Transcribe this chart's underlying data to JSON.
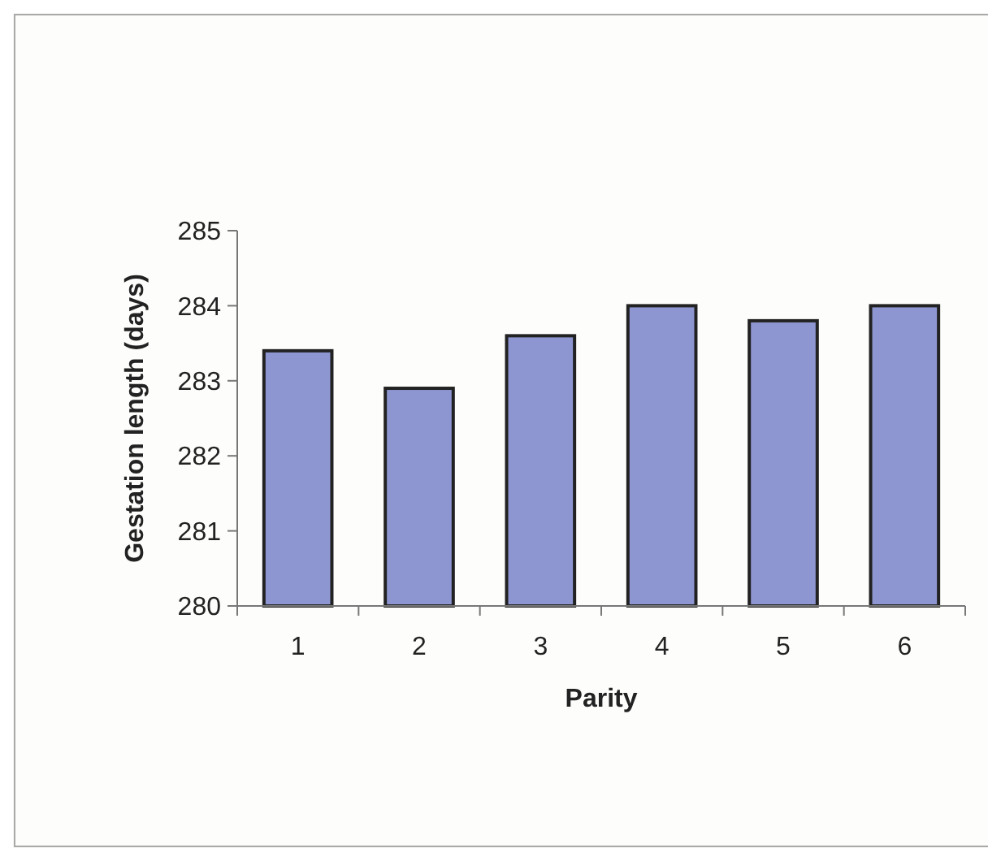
{
  "chart_data": {
    "type": "bar",
    "xlabel": "Parity",
    "ylabel": "Gestation length (days)",
    "categories": [
      "1",
      "2",
      "3",
      "4",
      "5",
      "6"
    ],
    "values": [
      283.4,
      282.9,
      283.6,
      284.0,
      283.8,
      284.0
    ],
    "color": "#8e96d2",
    "ylim": [
      280,
      285
    ],
    "yticks": [
      280,
      281,
      282,
      283,
      284,
      285
    ],
    "grid": false
  }
}
